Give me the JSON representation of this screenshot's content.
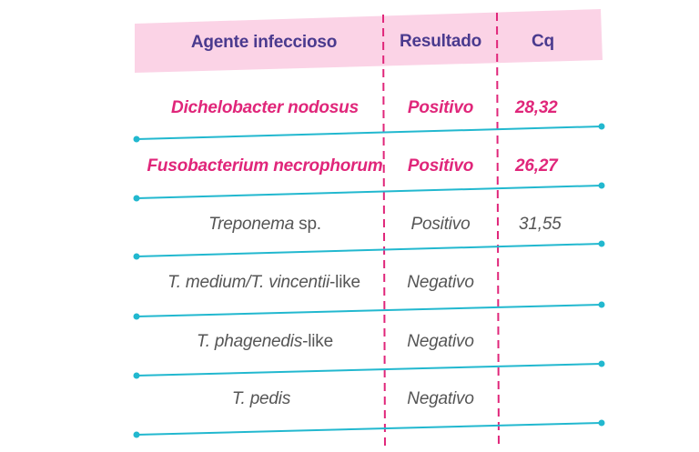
{
  "table": {
    "headers": {
      "agent": "Agente infeccioso",
      "result": "Resultado",
      "cq": "Cq"
    },
    "rows": [
      {
        "agent_italic": "Dichelobacter nodosus",
        "agent_plain": "",
        "result": "Positivo",
        "cq": "28,32",
        "highlight": true
      },
      {
        "agent_italic": "Fusobacterium necrophorum",
        "agent_plain": "",
        "result": "Positivo",
        "cq": "26,27",
        "highlight": true
      },
      {
        "agent_italic": "Treponema",
        "agent_plain": " sp.",
        "result": "Positivo",
        "cq": "31,55",
        "highlight": false
      },
      {
        "agent_italic": "T. medium/T. vincentii",
        "agent_plain": "-like",
        "result": "Negativo",
        "cq": "",
        "highlight": false
      },
      {
        "agent_italic": "T. phagenedis",
        "agent_plain": "-like",
        "result": "Negativo",
        "cq": "",
        "highlight": false
      },
      {
        "agent_italic": "T. pedis",
        "agent_plain": "",
        "result": "Negativo",
        "cq": "",
        "highlight": false
      }
    ]
  },
  "colors": {
    "header_bg": "#fbd3e6",
    "header_text": "#4a3a8e",
    "highlight_text": "#e0267a",
    "body_text": "#555555",
    "divider_line": "#22b8cf",
    "column_dash": "#e0267a"
  }
}
